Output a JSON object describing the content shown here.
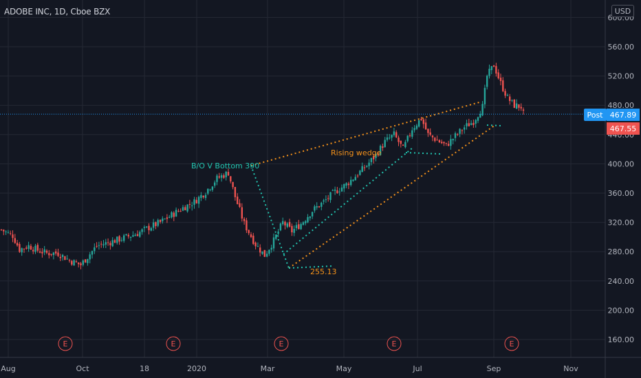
{
  "header": {
    "title": "ADOBE INC, 1D, Cboe BZX",
    "currency": "USD"
  },
  "colors": {
    "background": "#131722",
    "grid": "#242834",
    "up": "#26a69a",
    "down": "#ef5350",
    "orange": "#f7931a",
    "teal": "#22c5b0",
    "post_badge": "#2196f3",
    "earnings": "#ef5350",
    "axis_text": "#b2b5be"
  },
  "chart_data": {
    "type": "candlestick",
    "title": "ADOBE INC, 1D, Cboe BZX",
    "xlabel": "",
    "ylabel": "",
    "x_ticks": [
      "Aug",
      "Oct",
      "18",
      "2020",
      "Mar",
      "May",
      "Jul",
      "Sep",
      "Nov"
    ],
    "y_ticks": [
      "160.00",
      "200.00",
      "240.00",
      "280.00",
      "320.00",
      "360.00",
      "400.00",
      "440.00",
      "480.00",
      "520.00",
      "560.00",
      "600.00"
    ],
    "ylim": [
      140,
      600
    ],
    "price_path": [
      [
        0,
        310
      ],
      [
        5,
        302
      ],
      [
        8,
        283
      ],
      [
        12,
        288
      ],
      [
        16,
        282
      ],
      [
        20,
        278
      ],
      [
        25,
        278
      ],
      [
        30,
        268
      ],
      [
        35,
        262
      ],
      [
        42,
        288
      ],
      [
        50,
        295
      ],
      [
        55,
        300
      ],
      [
        60,
        305
      ],
      [
        65,
        313
      ],
      [
        70,
        320
      ],
      [
        75,
        330
      ],
      [
        80,
        340
      ],
      [
        85,
        348
      ],
      [
        90,
        362
      ],
      [
        95,
        380
      ],
      [
        100,
        388
      ],
      [
        103,
        355
      ],
      [
        107,
        318
      ],
      [
        112,
        290
      ],
      [
        116,
        275
      ],
      [
        120,
        295
      ],
      [
        124,
        320
      ],
      [
        128,
        308
      ],
      [
        132,
        318
      ],
      [
        137,
        336
      ],
      [
        142,
        348
      ],
      [
        147,
        362
      ],
      [
        152,
        372
      ],
      [
        157,
        386
      ],
      [
        161,
        398
      ],
      [
        165,
        412
      ],
      [
        169,
        430
      ],
      [
        173,
        440
      ],
      [
        177,
        420
      ],
      [
        181,
        448
      ],
      [
        185,
        462
      ],
      [
        188,
        440
      ],
      [
        192,
        432
      ],
      [
        196,
        425
      ],
      [
        200,
        438
      ],
      [
        204,
        450
      ],
      [
        208,
        458
      ],
      [
        212,
        478
      ],
      [
        214,
        520
      ],
      [
        217,
        535
      ],
      [
        220,
        510
      ],
      [
        223,
        490
      ],
      [
        226,
        480
      ],
      [
        229,
        478
      ],
      [
        230,
        468
      ]
    ],
    "last_price": 467.89,
    "post_price": 467.55,
    "post_label": "Post",
    "annotations": [
      {
        "text": "B/O V Bottom 390",
        "value": 390,
        "color": "teal"
      },
      {
        "text": "Rising wedge",
        "color": "orange"
      },
      {
        "text": "255.13",
        "value": 255.13,
        "color": "orange"
      }
    ],
    "earnings_markers": [
      "E",
      "E",
      "E",
      "E",
      "E"
    ],
    "grid": true
  }
}
